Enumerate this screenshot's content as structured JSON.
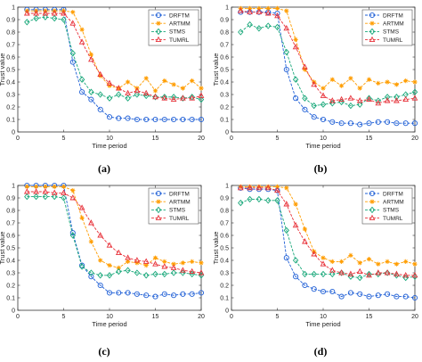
{
  "chart_data": [
    {
      "type": "line",
      "caption": "(a)",
      "xlabel": "Time period",
      "ylabel": "Trust value",
      "xlim": [
        0,
        20
      ],
      "ylim": [
        0,
        1
      ],
      "xticks": [
        "0",
        "5",
        "10",
        "15",
        "20"
      ],
      "yticks": [
        "0",
        "0.1",
        "0.2",
        "0.3",
        "0.4",
        "0.5",
        "0.6",
        "0.7",
        "0.8",
        "0.9",
        "1"
      ],
      "legend": "top-right",
      "grid": false,
      "x": [
        1,
        2,
        3,
        4,
        5,
        6,
        7,
        8,
        9,
        10,
        11,
        12,
        13,
        14,
        15,
        16,
        17,
        18,
        19,
        20
      ],
      "series": [
        {
          "name": "DRFTM",
          "color": "#1f5fd6",
          "marker": "circle",
          "values": [
            0.98,
            0.98,
            0.98,
            0.98,
            0.98,
            0.56,
            0.32,
            0.26,
            0.18,
            0.12,
            0.11,
            0.11,
            0.1,
            0.1,
            0.1,
            0.1,
            0.1,
            0.1,
            0.1,
            0.1
          ]
        },
        {
          "name": "ARTMM",
          "color": "#ff9d00",
          "marker": "star",
          "values": [
            0.97,
            0.97,
            0.97,
            0.97,
            0.97,
            0.96,
            0.82,
            0.62,
            0.45,
            0.37,
            0.35,
            0.4,
            0.35,
            0.43,
            0.33,
            0.41,
            0.38,
            0.35,
            0.41,
            0.35
          ]
        },
        {
          "name": "STMS",
          "color": "#19a87a",
          "marker": "diamond",
          "values": [
            0.88,
            0.91,
            0.92,
            0.91,
            0.9,
            0.63,
            0.42,
            0.32,
            0.3,
            0.27,
            0.3,
            0.27,
            0.3,
            0.29,
            0.28,
            0.28,
            0.28,
            0.27,
            0.28,
            0.26
          ]
        },
        {
          "name": "TUMRL",
          "color": "#e8323a",
          "marker": "triangle",
          "values": [
            0.95,
            0.95,
            0.95,
            0.95,
            0.95,
            0.87,
            0.72,
            0.58,
            0.46,
            0.39,
            0.35,
            0.31,
            0.33,
            0.31,
            0.28,
            0.27,
            0.26,
            0.27,
            0.27,
            0.29
          ]
        }
      ]
    },
    {
      "type": "line",
      "caption": "(b)",
      "xlabel": "Time period",
      "ylabel": "Trust value",
      "xlim": [
        0,
        20
      ],
      "ylim": [
        0,
        1
      ],
      "xticks": [
        "0",
        "5",
        "10",
        "15",
        "20"
      ],
      "yticks": [
        "0",
        "0.1",
        "0.2",
        "0.3",
        "0.4",
        "0.5",
        "0.6",
        "0.7",
        "0.8",
        "0.9",
        "1"
      ],
      "legend": "top-right",
      "grid": false,
      "x": [
        1,
        2,
        3,
        4,
        5,
        6,
        7,
        8,
        9,
        10,
        11,
        12,
        13,
        14,
        15,
        16,
        17,
        18,
        19,
        20
      ],
      "series": [
        {
          "name": "DRFTM",
          "color": "#1f5fd6",
          "marker": "circle",
          "values": [
            0.96,
            0.96,
            0.96,
            0.96,
            0.95,
            0.5,
            0.27,
            0.18,
            0.12,
            0.1,
            0.08,
            0.07,
            0.07,
            0.06,
            0.07,
            0.08,
            0.08,
            0.07,
            0.07,
            0.07
          ]
        },
        {
          "name": "ARTMM",
          "color": "#ff9d00",
          "marker": "star",
          "values": [
            0.99,
            0.99,
            0.99,
            0.99,
            0.99,
            0.97,
            0.74,
            0.5,
            0.4,
            0.35,
            0.42,
            0.37,
            0.43,
            0.35,
            0.42,
            0.39,
            0.4,
            0.38,
            0.41,
            0.4
          ]
        },
        {
          "name": "STMS",
          "color": "#19a87a",
          "marker": "diamond",
          "values": [
            0.8,
            0.86,
            0.83,
            0.85,
            0.84,
            0.64,
            0.42,
            0.27,
            0.21,
            0.22,
            0.23,
            0.24,
            0.21,
            0.22,
            0.27,
            0.25,
            0.28,
            0.28,
            0.3,
            0.32
          ]
        },
        {
          "name": "TUMRL",
          "color": "#e8323a",
          "marker": "triangle",
          "values": [
            0.97,
            0.96,
            0.96,
            0.95,
            0.93,
            0.83,
            0.68,
            0.52,
            0.38,
            0.29,
            0.25,
            0.26,
            0.27,
            0.25,
            0.26,
            0.23,
            0.25,
            0.25,
            0.26,
            0.27
          ]
        }
      ]
    },
    {
      "type": "line",
      "caption": "(c)",
      "xlabel": "Time period",
      "ylabel": "Trust value",
      "xlim": [
        0,
        20
      ],
      "ylim": [
        0,
        1
      ],
      "xticks": [
        "0",
        "5",
        "10",
        "15",
        "20"
      ],
      "yticks": [
        "0",
        "0.1",
        "0.2",
        "0.3",
        "0.4",
        "0.5",
        "0.6",
        "0.7",
        "0.8",
        "0.9",
        "1"
      ],
      "legend": "top-right",
      "grid": false,
      "x": [
        1,
        2,
        3,
        4,
        5,
        6,
        7,
        8,
        9,
        10,
        11,
        12,
        13,
        14,
        15,
        16,
        17,
        18,
        19,
        20
      ],
      "series": [
        {
          "name": "DRFTM",
          "color": "#1f5fd6",
          "marker": "circle",
          "values": [
            1.0,
            1.0,
            1.0,
            1.0,
            1.0,
            0.62,
            0.36,
            0.27,
            0.2,
            0.14,
            0.14,
            0.14,
            0.13,
            0.12,
            0.11,
            0.13,
            0.12,
            0.13,
            0.13,
            0.14
          ]
        },
        {
          "name": "ARTMM",
          "color": "#ff9d00",
          "marker": "star",
          "values": [
            0.99,
            0.99,
            0.99,
            0.99,
            0.99,
            0.96,
            0.74,
            0.55,
            0.4,
            0.36,
            0.34,
            0.39,
            0.38,
            0.36,
            0.42,
            0.39,
            0.37,
            0.38,
            0.39,
            0.38
          ]
        },
        {
          "name": "STMS",
          "color": "#19a87a",
          "marker": "diamond",
          "values": [
            0.91,
            0.91,
            0.91,
            0.91,
            0.9,
            0.6,
            0.35,
            0.3,
            0.28,
            0.28,
            0.31,
            0.32,
            0.3,
            0.28,
            0.29,
            0.29,
            0.3,
            0.3,
            0.29,
            0.28
          ]
        },
        {
          "name": "TUMRL",
          "color": "#e8323a",
          "marker": "triangle",
          "values": [
            0.95,
            0.95,
            0.95,
            0.94,
            0.94,
            0.9,
            0.82,
            0.7,
            0.6,
            0.52,
            0.46,
            0.42,
            0.4,
            0.39,
            0.37,
            0.35,
            0.34,
            0.32,
            0.31,
            0.3
          ]
        }
      ]
    },
    {
      "type": "line",
      "caption": "(d)",
      "xlabel": "Time period",
      "ylabel": "Trust value",
      "xlim": [
        0,
        20
      ],
      "ylim": [
        0,
        1
      ],
      "xticks": [
        "0",
        "5",
        "10",
        "15",
        "20"
      ],
      "yticks": [
        "0",
        "0.1",
        "0.2",
        "0.3",
        "0.4",
        "0.5",
        "0.6",
        "0.7",
        "0.8",
        "0.9",
        "1"
      ],
      "legend": "top-right",
      "grid": false,
      "x": [
        1,
        2,
        3,
        4,
        5,
        6,
        7,
        8,
        9,
        10,
        11,
        12,
        13,
        14,
        15,
        16,
        17,
        18,
        19,
        20
      ],
      "series": [
        {
          "name": "DRFTM",
          "color": "#1f5fd6",
          "marker": "circle",
          "values": [
            0.98,
            0.97,
            0.97,
            0.97,
            0.96,
            0.42,
            0.27,
            0.2,
            0.17,
            0.15,
            0.15,
            0.11,
            0.14,
            0.13,
            0.11,
            0.12,
            0.13,
            0.11,
            0.11,
            0.1
          ]
        },
        {
          "name": "ARTMM",
          "color": "#ff9d00",
          "marker": "star",
          "values": [
            0.99,
            0.99,
            0.99,
            0.99,
            0.99,
            0.98,
            0.85,
            0.65,
            0.47,
            0.42,
            0.39,
            0.39,
            0.44,
            0.38,
            0.41,
            0.37,
            0.39,
            0.37,
            0.39,
            0.37
          ]
        },
        {
          "name": "STMS",
          "color": "#19a87a",
          "marker": "diamond",
          "values": [
            0.86,
            0.89,
            0.89,
            0.88,
            0.88,
            0.64,
            0.4,
            0.29,
            0.29,
            0.29,
            0.29,
            0.3,
            0.27,
            0.26,
            0.29,
            0.29,
            0.3,
            0.28,
            0.26,
            0.27
          ]
        },
        {
          "name": "TUMRL",
          "color": "#e8323a",
          "marker": "triangle",
          "values": [
            0.98,
            0.98,
            0.98,
            0.98,
            0.96,
            0.85,
            0.68,
            0.55,
            0.45,
            0.37,
            0.32,
            0.3,
            0.29,
            0.31,
            0.28,
            0.3,
            0.3,
            0.29,
            0.28,
            0.28
          ]
        }
      ]
    }
  ]
}
